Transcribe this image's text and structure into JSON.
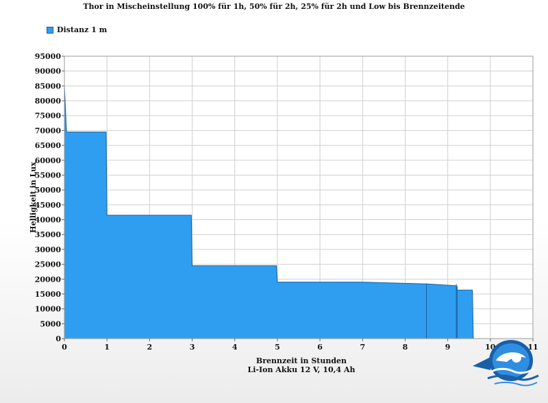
{
  "chart_data": {
    "type": "area",
    "title": "Thor in Mischeinstellung 100% für 1h, 50% für 2h, 25% für 2h und Low bis Brennzeitende",
    "xlabel": "Brennzeit in Stunden",
    "xlabel_sub": "Li-Ion Akku 12 V, 10,4 Ah",
    "ylabel": "Helligkeit in Lux",
    "xlim": [
      0,
      11
    ],
    "ylim": [
      0,
      95000
    ],
    "x_ticks": [
      0,
      1,
      2,
      3,
      4,
      5,
      6,
      7,
      8,
      9,
      10,
      11
    ],
    "y_ticks": [
      0,
      5000,
      10000,
      15000,
      20000,
      25000,
      30000,
      35000,
      40000,
      45000,
      50000,
      55000,
      60000,
      65000,
      70000,
      75000,
      80000,
      85000,
      90000,
      95000
    ],
    "grid": true,
    "legend_position": "top-left",
    "colors": {
      "fill": "#2f9ef0",
      "stroke": "#1a5f99",
      "grid": "#cfcfcf"
    },
    "series": [
      {
        "name": "Distanz 1 m",
        "x": [
          0,
          0.01,
          0.05,
          0.98,
          1.0,
          2.98,
          3.0,
          4.98,
          5.0,
          6.0,
          7.0,
          8.0,
          8.5,
          9.2,
          9.22,
          9.58,
          9.6
        ],
        "y": [
          85000,
          82000,
          69500,
          69500,
          41500,
          41500,
          24500,
          24500,
          19000,
          19000,
          19000,
          18600,
          18400,
          17800,
          16300,
          16300,
          0
        ]
      }
    ]
  }
}
